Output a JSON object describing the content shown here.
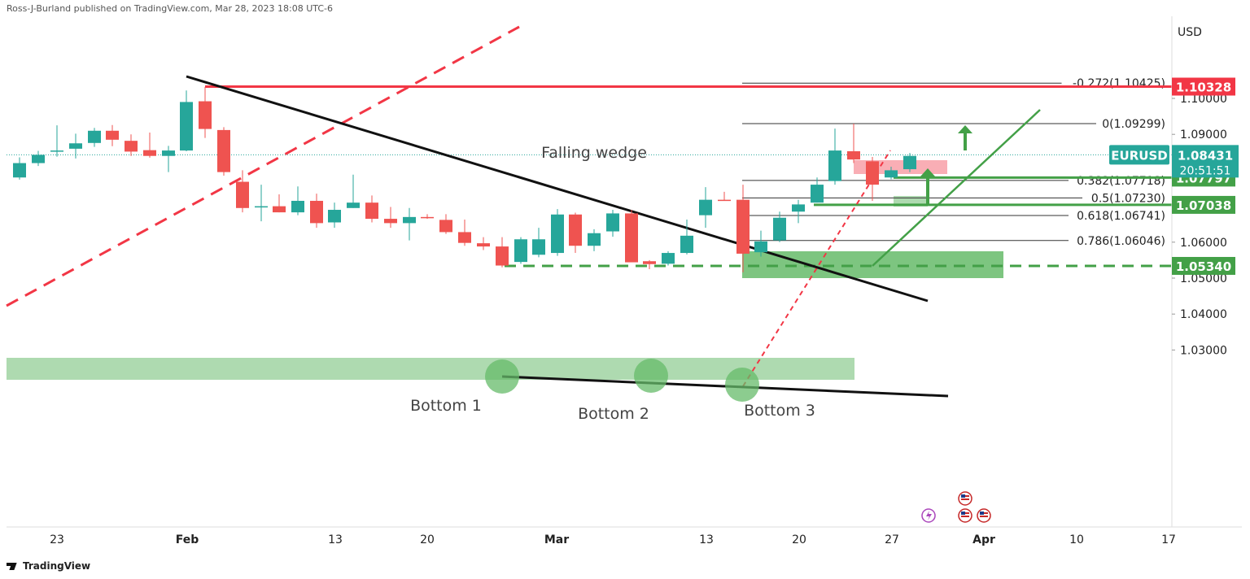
{
  "header": {
    "published": "Ross-J-Burland published on TradingView.com, Mar 28, 2023 18:08 UTC-6"
  },
  "footer": {
    "brand": "TradingView"
  },
  "colors": {
    "up": "#26a69a",
    "down": "#ef5350",
    "resistance": "#f23645",
    "support": "#43a047",
    "zone": "#a5d6a7"
  },
  "chart_data": {
    "type": "candlestick",
    "symbol": "EURUSD",
    "currency": "USD",
    "title": "Falling wedge",
    "ylim": [
      1.025,
      1.1125
    ],
    "y_ticks": [
      "1.10000",
      "1.09000",
      "1.06000",
      "1.05000",
      "1.04000",
      "1.03000"
    ],
    "x_ticks": [
      {
        "label": "23",
        "x": 70
      },
      {
        "label": "Feb",
        "x": 230
      },
      {
        "label": "13",
        "x": 412
      },
      {
        "label": "20",
        "x": 525
      },
      {
        "label": "Mar",
        "x": 684
      },
      {
        "label": "13",
        "x": 868
      },
      {
        "label": "20",
        "x": 982
      },
      {
        "label": "27",
        "x": 1096
      },
      {
        "label": "Apr",
        "x": 1209
      },
      {
        "label": "10",
        "x": 1323
      },
      {
        "label": "17",
        "x": 1436
      }
    ],
    "candles": [
      {
        "x": 24,
        "o": 1.078,
        "h": 1.0836,
        "c": 1.082,
        "l": 1.0774
      },
      {
        "x": 47,
        "o": 1.082,
        "h": 1.0854,
        "c": 1.0843,
        "l": 1.0812
      },
      {
        "x": 70,
        "o": 1.0855,
        "h": 1.0925,
        "c": 1.0855,
        "l": 1.0838
      },
      {
        "x": 93,
        "o": 1.086,
        "h": 1.0902,
        "c": 1.0875,
        "l": 1.0833
      },
      {
        "x": 116,
        "o": 1.0876,
        "h": 1.0918,
        "c": 1.091,
        "l": 1.0865
      },
      {
        "x": 138,
        "o": 1.091,
        "h": 1.0926,
        "c": 1.0885,
        "l": 1.0867
      },
      {
        "x": 161,
        "o": 1.0882,
        "h": 1.09,
        "c": 1.0852,
        "l": 1.084
      },
      {
        "x": 184,
        "o": 1.0856,
        "h": 1.0905,
        "c": 1.084,
        "l": 1.0835
      },
      {
        "x": 207,
        "o": 1.084,
        "h": 1.0868,
        "c": 1.0855,
        "l": 1.0795
      },
      {
        "x": 229,
        "o": 1.0855,
        "h": 1.1022,
        "c": 1.099,
        "l": 1.0853
      },
      {
        "x": 252,
        "o": 1.0992,
        "h": 1.1032,
        "c": 1.0915,
        "l": 1.089
      },
      {
        "x": 275,
        "o": 1.0912,
        "h": 1.092,
        "c": 1.0795,
        "l": 1.0785
      },
      {
        "x": 298,
        "o": 1.0768,
        "h": 1.08,
        "c": 1.0695,
        "l": 1.0683
      },
      {
        "x": 321,
        "o": 1.07,
        "h": 1.076,
        "c": 1.07,
        "l": 1.0658
      },
      {
        "x": 343,
        "o": 1.07,
        "h": 1.0733,
        "c": 1.0683,
        "l": 1.0683
      },
      {
        "x": 366,
        "o": 1.0683,
        "h": 1.0755,
        "c": 1.0715,
        "l": 1.0675
      },
      {
        "x": 389,
        "o": 1.0715,
        "h": 1.0735,
        "c": 1.0653,
        "l": 1.064
      },
      {
        "x": 411,
        "o": 1.0655,
        "h": 1.071,
        "c": 1.069,
        "l": 1.064
      },
      {
        "x": 434,
        "o": 1.0695,
        "h": 1.0788,
        "c": 1.071,
        "l": 1.0695
      },
      {
        "x": 457,
        "o": 1.071,
        "h": 1.073,
        "c": 1.0665,
        "l": 1.0655
      },
      {
        "x": 480,
        "o": 1.0665,
        "h": 1.0698,
        "c": 1.0653,
        "l": 1.064
      },
      {
        "x": 503,
        "o": 1.0653,
        "h": 1.0695,
        "c": 1.067,
        "l": 1.0605
      },
      {
        "x": 525,
        "o": 1.067,
        "h": 1.0678,
        "c": 1.0667,
        "l": 1.0665
      },
      {
        "x": 548,
        "o": 1.0662,
        "h": 1.0678,
        "c": 1.0628,
        "l": 1.0623
      },
      {
        "x": 571,
        "o": 1.0628,
        "h": 1.0663,
        "c": 1.0598,
        "l": 1.059
      },
      {
        "x": 594,
        "o": 1.0597,
        "h": 1.0614,
        "c": 1.0588,
        "l": 1.0578
      },
      {
        "x": 617,
        "o": 1.0588,
        "h": 1.0614,
        "c": 1.0535,
        "l": 1.053
      },
      {
        "x": 640,
        "o": 1.0545,
        "h": 1.0614,
        "c": 1.0608,
        "l": 1.054
      },
      {
        "x": 662,
        "o": 1.0565,
        "h": 1.064,
        "c": 1.0608,
        "l": 1.0558
      },
      {
        "x": 685,
        "o": 1.057,
        "h": 1.0692,
        "c": 1.0677,
        "l": 1.0562
      },
      {
        "x": 707,
        "o": 1.0677,
        "h": 1.0682,
        "c": 1.059,
        "l": 1.057
      },
      {
        "x": 730,
        "o": 1.059,
        "h": 1.0636,
        "c": 1.0625,
        "l": 1.0575
      },
      {
        "x": 753,
        "o": 1.063,
        "h": 1.069,
        "c": 1.068,
        "l": 1.0615
      },
      {
        "x": 776,
        "o": 1.068,
        "h": 1.069,
        "c": 1.0544,
        "l": 1.0544
      },
      {
        "x": 798,
        "o": 1.0547,
        "h": 1.055,
        "c": 1.0539,
        "l": 1.0525
      },
      {
        "x": 821,
        "o": 1.054,
        "h": 1.0575,
        "c": 1.057,
        "l": 1.0535
      },
      {
        "x": 844,
        "o": 1.057,
        "h": 1.0663,
        "c": 1.0618,
        "l": 1.0566
      },
      {
        "x": 867,
        "o": 1.0675,
        "h": 1.0753,
        "c": 1.0718,
        "l": 1.064
      },
      {
        "x": 890,
        "o": 1.0718,
        "h": 1.074,
        "c": 1.0717,
        "l": 1.0715
      },
      {
        "x": 913,
        "o": 1.0718,
        "h": 1.076,
        "c": 1.0568,
        "l": 1.0516
      },
      {
        "x": 935,
        "o": 1.0572,
        "h": 1.0632,
        "c": 1.0602,
        "l": 1.056
      },
      {
        "x": 958,
        "o": 1.0605,
        "h": 1.0685,
        "c": 1.0668,
        "l": 1.06
      },
      {
        "x": 981,
        "o": 1.0685,
        "h": 1.0718,
        "c": 1.0705,
        "l": 1.0653
      },
      {
        "x": 1004,
        "o": 1.071,
        "h": 1.078,
        "c": 1.076,
        "l": 1.071
      },
      {
        "x": 1026,
        "o": 1.077,
        "h": 1.0916,
        "c": 1.0855,
        "l": 1.076
      },
      {
        "x": 1049,
        "o": 1.0853,
        "h": 1.093,
        "c": 1.083,
        "l": 1.082
      },
      {
        "x": 1072,
        "o": 1.0825,
        "h": 1.0837,
        "c": 1.076,
        "l": 1.0715
      },
      {
        "x": 1095,
        "o": 1.078,
        "h": 1.081,
        "c": 1.08,
        "l": 1.0775
      },
      {
        "x": 1118,
        "o": 1.0803,
        "h": 1.0848,
        "c": 1.084,
        "l": 1.0795
      }
    ],
    "fib_levels": [
      {
        "label": "-0.272(1.10425)",
        "price": 1.10425
      },
      {
        "label": "0(1.09299)",
        "price": 1.09299
      },
      {
        "label": "0.382(1.07718)",
        "price": 1.07718
      },
      {
        "label": "0.5(1.07230)",
        "price": 1.0723
      },
      {
        "label": "0.618(1.06741)",
        "price": 1.06741
      },
      {
        "label": "0.786(1.06046)",
        "price": 1.06046
      }
    ],
    "price_tags": [
      {
        "label": "1.10328",
        "price": 1.10328,
        "color": "#f23645"
      },
      {
        "label": "1.07797",
        "price": 1.07797,
        "color": "#43a047"
      },
      {
        "label": "1.07038",
        "price": 1.07038,
        "color": "#43a047"
      },
      {
        "label": "1.05340",
        "price": 1.0534,
        "color": "#43a047"
      }
    ],
    "current": {
      "symbol": "EURUSD",
      "price": "1.08431",
      "countdown": "20:51:51",
      "value": 1.08431
    },
    "annotations": [
      {
        "text": "Falling wedge"
      },
      {
        "text": "Bottom 1"
      },
      {
        "text": "Bottom 2"
      },
      {
        "text": "Bottom 3"
      }
    ],
    "grid": false
  }
}
